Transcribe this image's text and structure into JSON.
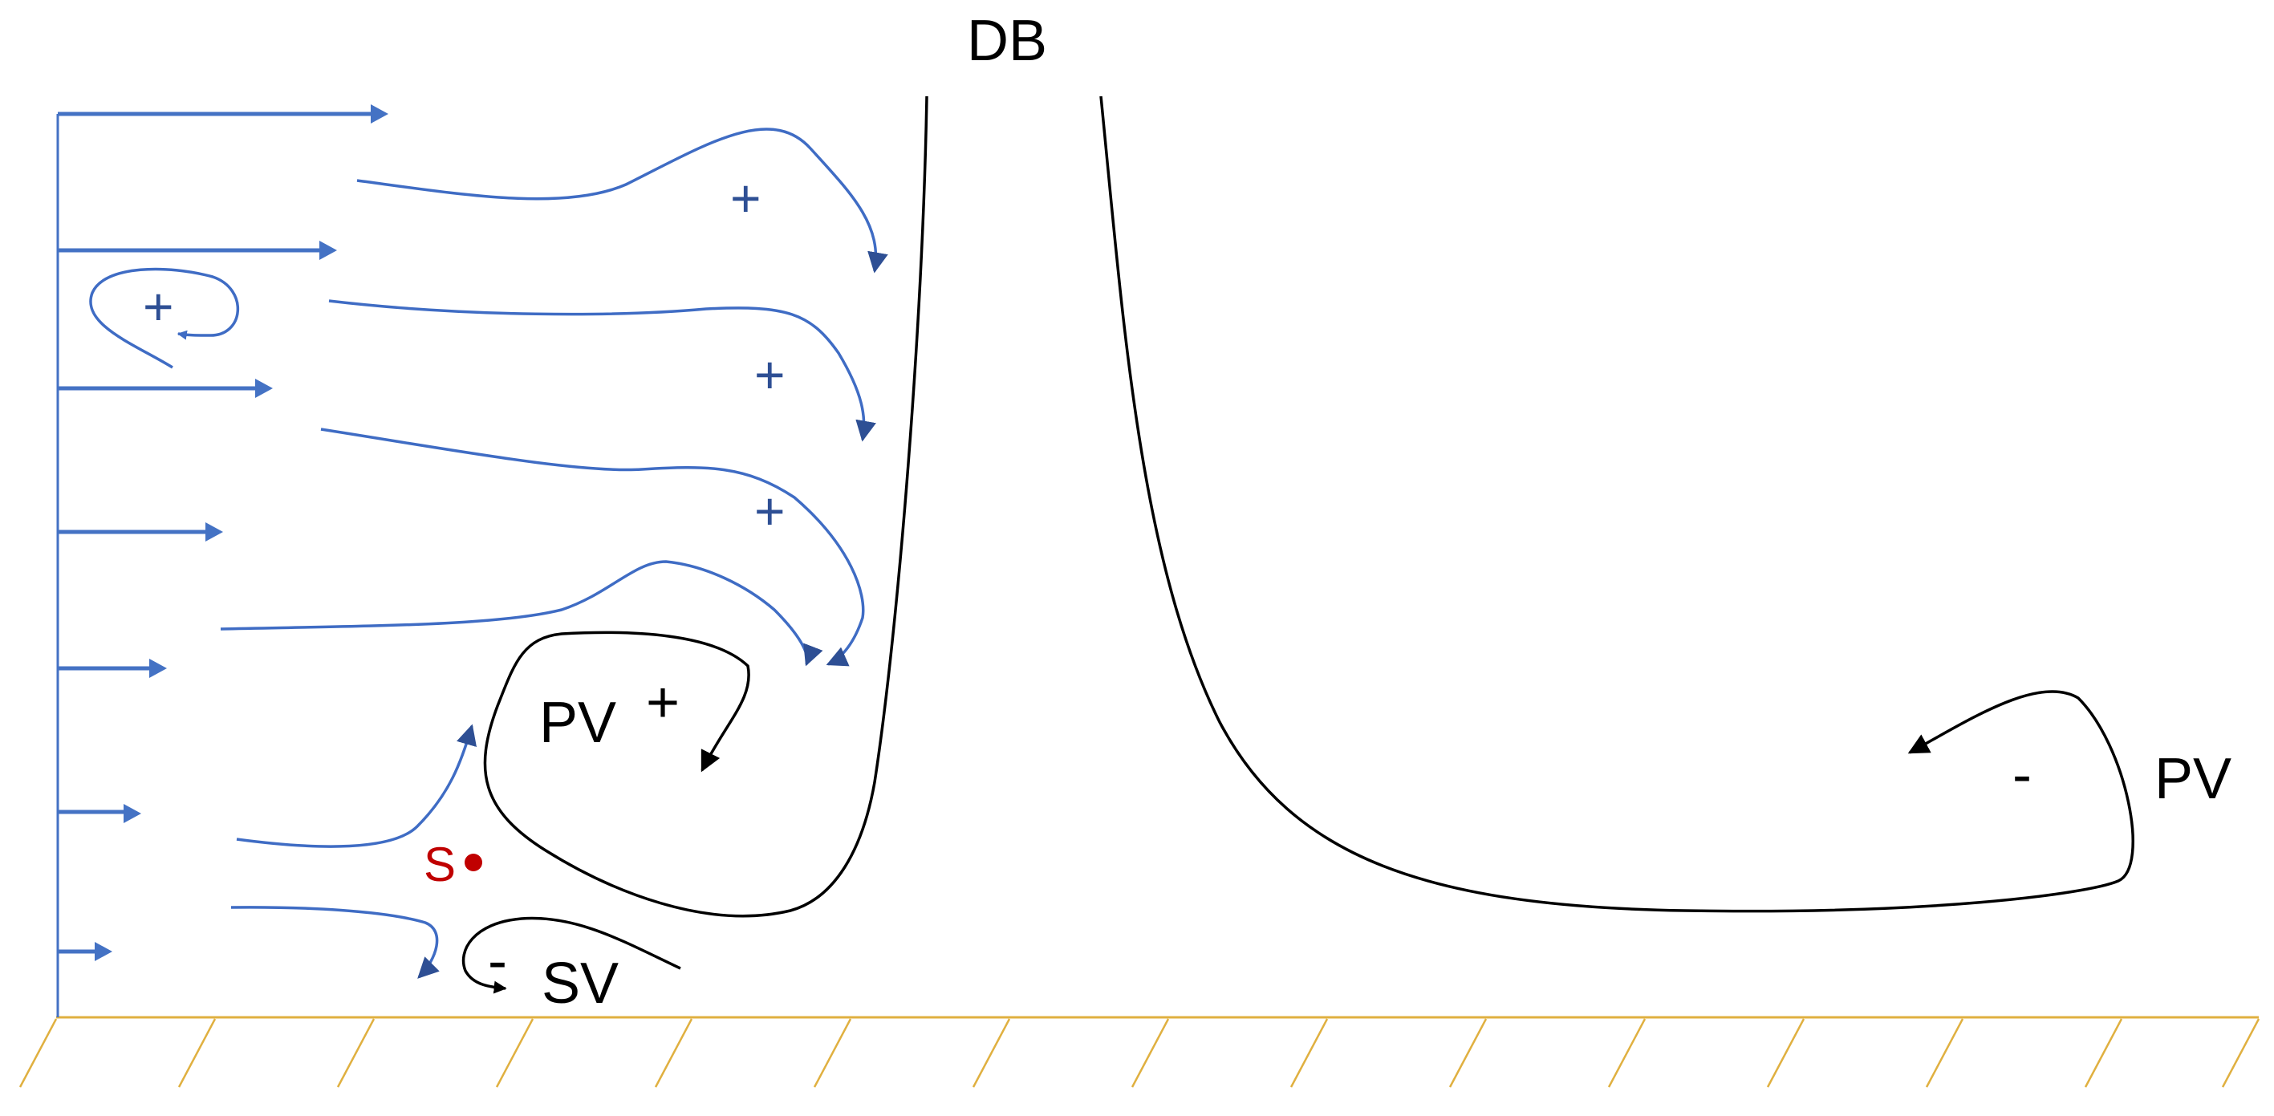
{
  "labels": {
    "db": "DB",
    "pv_left": "PV",
    "pv_left_sign": "+",
    "pv_right": "PV",
    "pv_right_sign": "-",
    "sv": "SV",
    "sv_sign": "-",
    "s_point": "S",
    "small_vortex_sign": "+",
    "plus_1": "+",
    "plus_2": "+",
    "plus_3": "+"
  },
  "colors": {
    "streamlines": "#3f6cc4",
    "labels_blue": "#2e4f94",
    "black_curves": "#000000",
    "ground": "#e0b040",
    "s_point": "#c00000"
  }
}
